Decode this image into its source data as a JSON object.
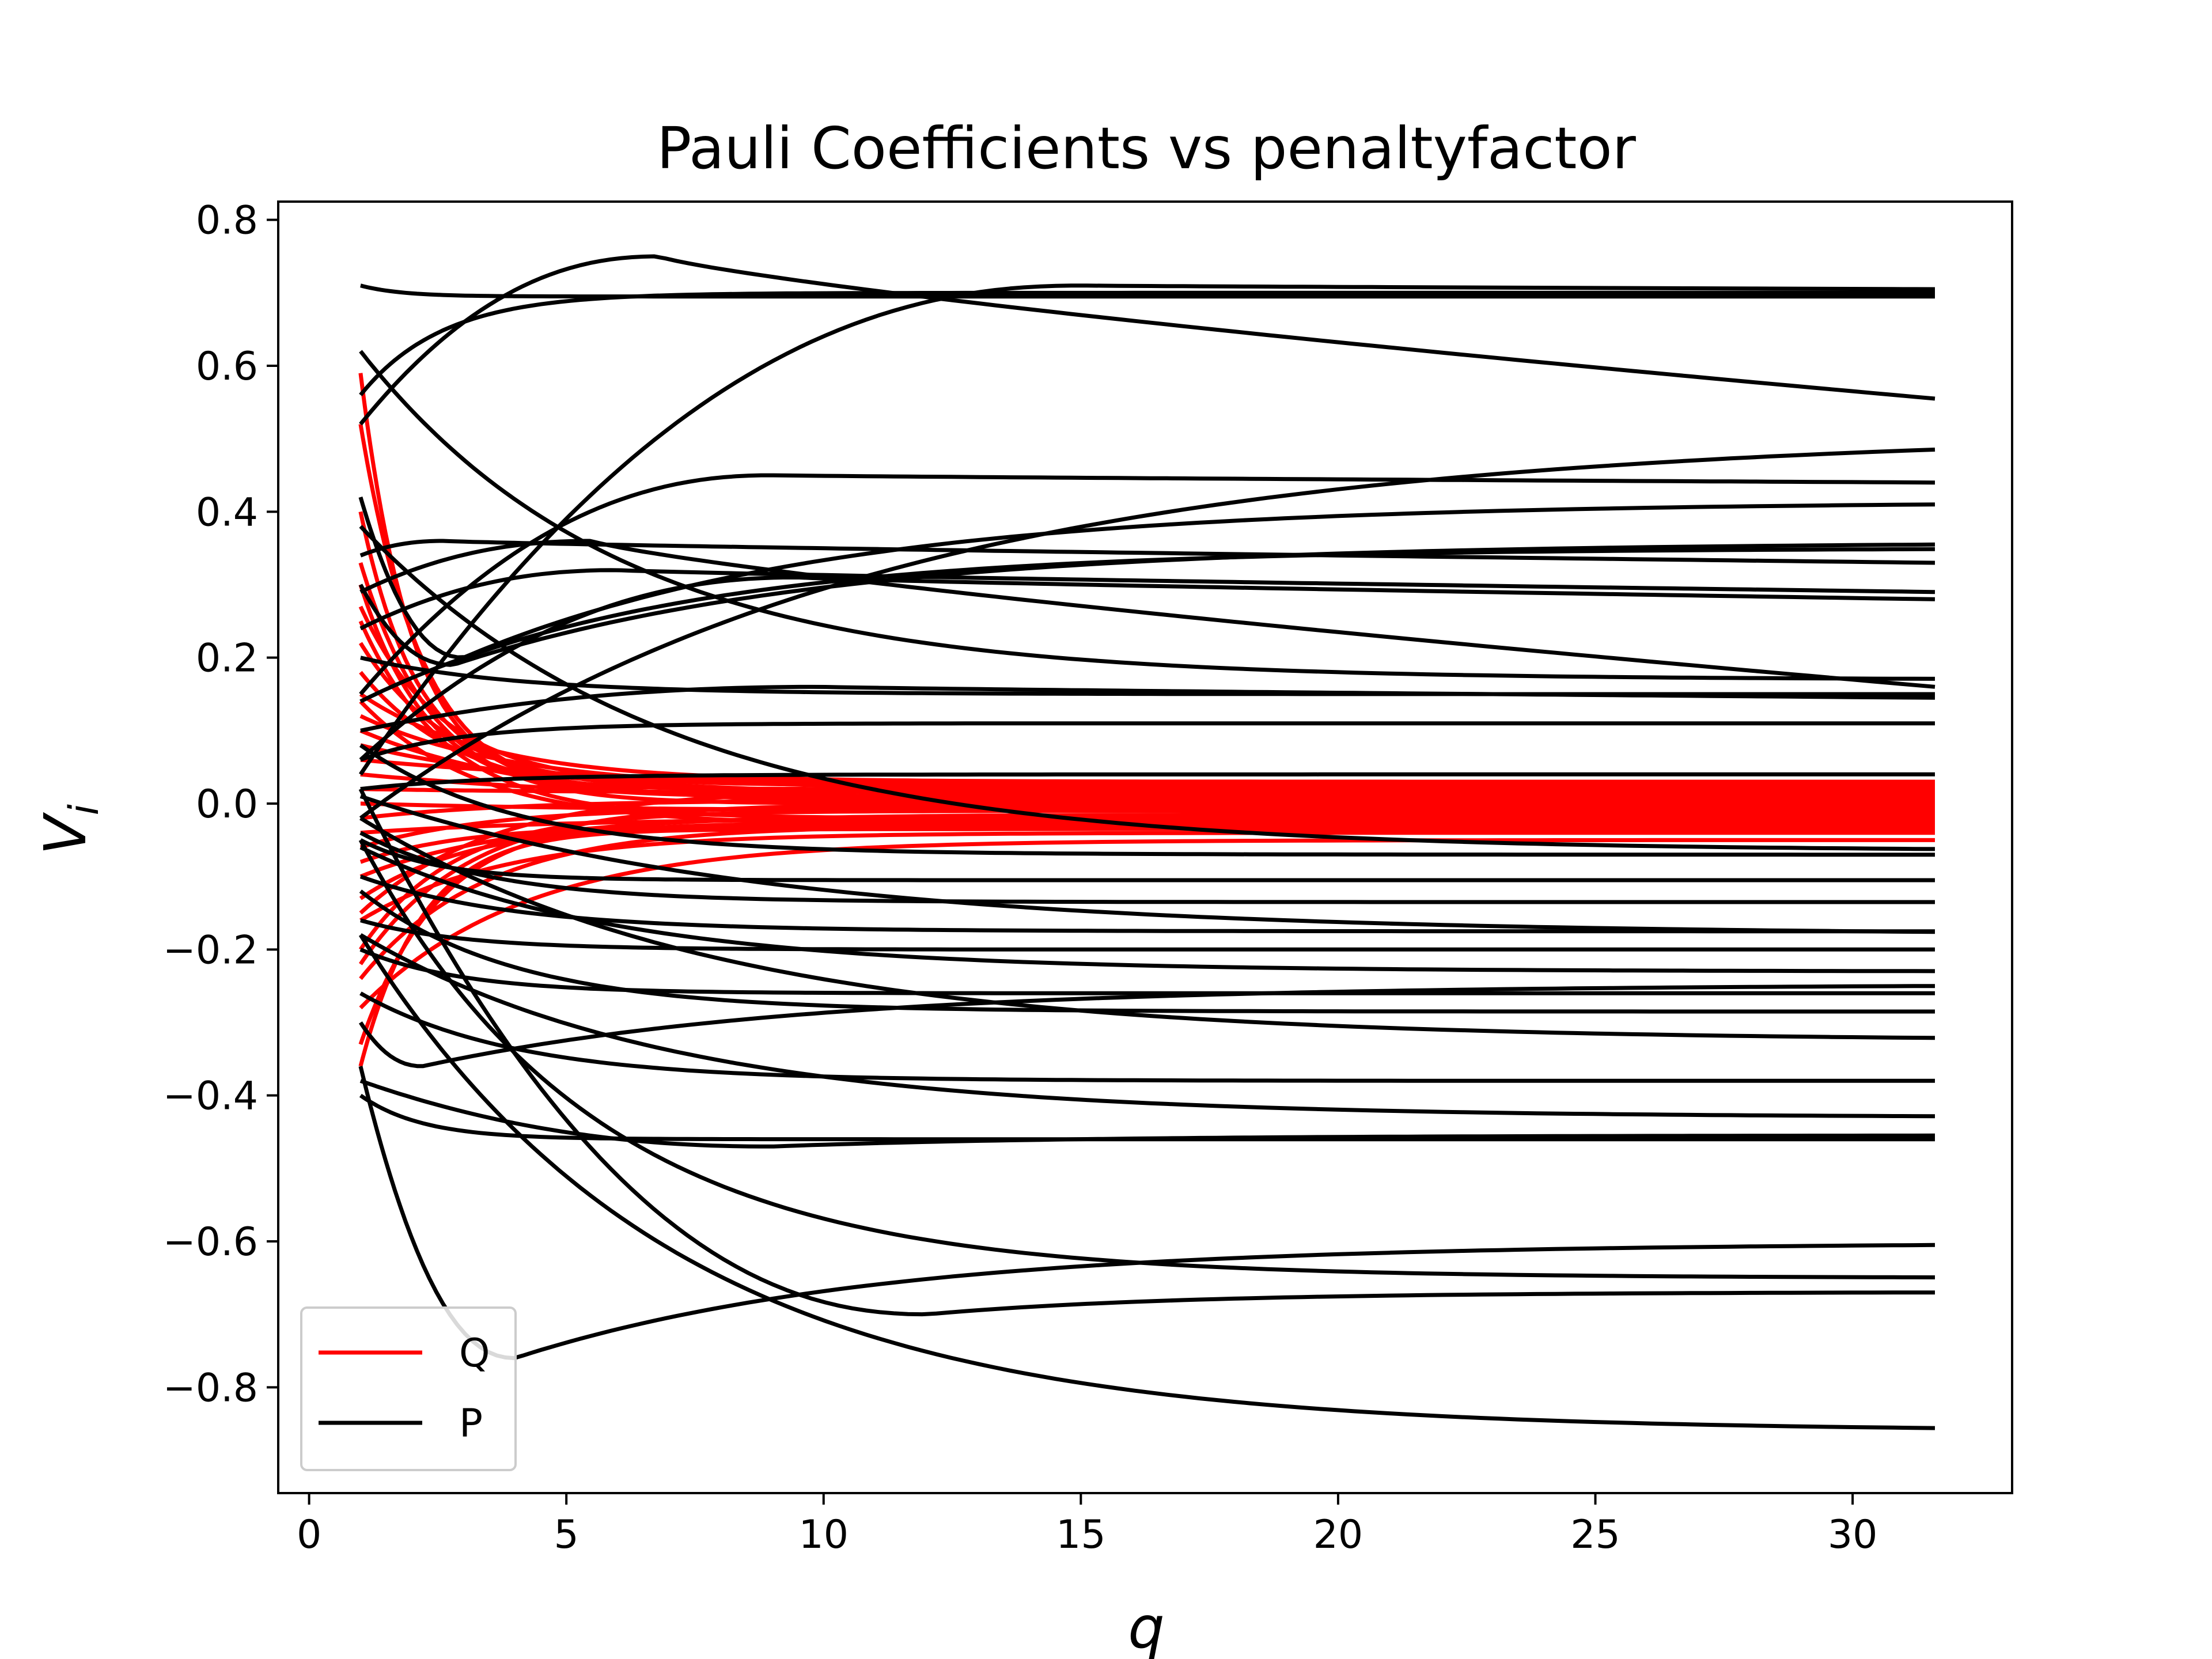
{
  "chart_data": {
    "type": "line",
    "title": "Pauli Coefficients vs penaltyfactor",
    "xlabel": "q",
    "ylabel": "V",
    "ylabel_subscript": "i",
    "xlim": [
      -0.6,
      33.1
    ],
    "ylim": [
      -0.945,
      0.825
    ],
    "xticks": [
      0,
      5,
      10,
      15,
      20,
      25,
      30
    ],
    "yticks": [
      -0.8,
      -0.6,
      -0.4,
      -0.2,
      0.0,
      0.2,
      0.4,
      0.6,
      0.8
    ],
    "ytick_labels": [
      "−0.8",
      "−0.6",
      "−0.4",
      "−0.2",
      "0.0",
      "0.2",
      "0.4",
      "0.6",
      "0.8"
    ],
    "grid": false,
    "legend": {
      "placement": "lower-left",
      "entries": [
        {
          "label": "Q",
          "color": "#ff0000"
        },
        {
          "label": "P",
          "color": "#000000"
        }
      ]
    },
    "x_range": [
      1.0,
      31.6
    ],
    "series_groups": [
      {
        "name": "Q",
        "color": "#ff0000",
        "curves": [
          {
            "start": 0.59,
            "end": 0.02,
            "tau": 1.0
          },
          {
            "start": 0.52,
            "end": 0.01,
            "tau": 1.2
          },
          {
            "start": 0.4,
            "end": 0.03,
            "tau": 1.1
          },
          {
            "start": 0.33,
            "end": 0.0,
            "tau": 1.4
          },
          {
            "start": 0.27,
            "end": 0.025,
            "tau": 1.6
          },
          {
            "start": 0.22,
            "end": 0.015,
            "tau": 1.8
          },
          {
            "start": 0.18,
            "end": 0.005,
            "tau": 2.0
          },
          {
            "start": 0.15,
            "end": 0.03,
            "tau": 2.5
          },
          {
            "start": 0.12,
            "end": 0.02,
            "tau": 3.0
          },
          {
            "start": 0.1,
            "end": -0.005,
            "tau": 3.5
          },
          {
            "start": 0.08,
            "end": 0.01,
            "tau": 4.0
          },
          {
            "start": 0.06,
            "end": 0.025,
            "tau": 5.0
          },
          {
            "start": 0.04,
            "end": 0.0,
            "tau": 6.0
          },
          {
            "start": 0.02,
            "end": 0.015,
            "tau": 4.0
          },
          {
            "start": 0.0,
            "end": -0.01,
            "tau": 5.0
          },
          {
            "start": -0.02,
            "end": 0.005,
            "tau": 3.0
          },
          {
            "start": -0.04,
            "end": -0.02,
            "tau": 4.0
          },
          {
            "start": -0.06,
            "end": -0.005,
            "tau": 2.5
          },
          {
            "start": -0.08,
            "end": -0.03,
            "tau": 2.0
          },
          {
            "start": -0.1,
            "end": -0.015,
            "tau": 3.0
          },
          {
            "start": -0.13,
            "end": -0.025,
            "tau": 2.2
          },
          {
            "start": -0.16,
            "end": -0.04,
            "tau": 2.8
          },
          {
            "start": -0.2,
            "end": -0.01,
            "tau": 1.8
          },
          {
            "start": -0.24,
            "end": -0.03,
            "tau": 2.4
          },
          {
            "start": -0.28,
            "end": -0.05,
            "tau": 3.2
          },
          {
            "start": -0.33,
            "end": -0.02,
            "tau": 1.5
          },
          {
            "start": -0.36,
            "end": -0.035,
            "tau": 1.2
          },
          {
            "start": 0.3,
            "end": 0.01,
            "tau": 1.3
          },
          {
            "start": 0.25,
            "end": -0.02,
            "tau": 1.7
          },
          {
            "start": -0.15,
            "end": 0.02,
            "tau": 2.6
          },
          {
            "start": -0.22,
            "end": 0.0,
            "tau": 2.1
          },
          {
            "start": 0.14,
            "end": -0.03,
            "tau": 2.3
          }
        ]
      },
      {
        "name": "P",
        "color": "#000000",
        "curves": [
          {
            "start": 0.56,
            "end": 0.7,
            "tau": 1.6
          },
          {
            "start": 0.71,
            "end": 0.695,
            "tau": 0.8
          },
          {
            "start": 0.52,
            "end": 0.555,
            "peak": 0.75,
            "peak_x": 6.8
          },
          {
            "start": 0.04,
            "end": 0.705,
            "peak": 0.71,
            "peak_x": 15.0
          },
          {
            "start": -0.02,
            "end": 0.51,
            "tau": 10.0
          },
          {
            "start": 0.15,
            "end": 0.44,
            "peak": 0.45,
            "peak_x": 9.0
          },
          {
            "start": 0.42,
            "end": 0.41,
            "dip": 0.2,
            "dip_x": 3.0
          },
          {
            "start": 0.3,
            "end": 0.355,
            "dip": 0.19,
            "dip_x": 2.8
          },
          {
            "start": 0.14,
            "end": 0.35,
            "tau": 6.0
          },
          {
            "start": 0.34,
            "end": 0.33,
            "peak": 0.36,
            "peak_x": 2.6
          },
          {
            "start": 0.24,
            "end": 0.29,
            "peak": 0.32,
            "peak_x": 6.0
          },
          {
            "start": 0.06,
            "end": 0.28,
            "peak": 0.31,
            "peak_x": 9.5
          },
          {
            "start": 0.62,
            "end": 0.17,
            "tau": 5.0
          },
          {
            "start": 0.29,
            "end": 0.16,
            "peak": 0.36,
            "peak_x": 5.5
          },
          {
            "start": 0.2,
            "end": 0.15,
            "tau": 3.0
          },
          {
            "start": 0.1,
            "end": 0.145,
            "peak": 0.16,
            "peak_x": 10.0
          },
          {
            "start": 0.06,
            "end": 0.11,
            "tau": 2.0
          },
          {
            "start": 0.02,
            "end": 0.04,
            "tau": 2.5
          },
          {
            "start": 0.38,
            "end": -0.065,
            "tau": 6.0
          },
          {
            "start": 0.08,
            "end": -0.07,
            "tau": 3.0
          },
          {
            "start": -0.05,
            "end": -0.105,
            "tau": 1.5
          },
          {
            "start": -0.04,
            "end": -0.135,
            "tau": 2.5
          },
          {
            "start": -0.1,
            "end": -0.175,
            "tau": 3.0
          },
          {
            "start": 0.01,
            "end": -0.18,
            "tau": 8.0
          },
          {
            "start": -0.16,
            "end": -0.2,
            "tau": 2.0
          },
          {
            "start": -0.06,
            "end": -0.23,
            "tau": 5.0
          },
          {
            "start": -0.2,
            "end": -0.26,
            "tau": 2.0
          },
          {
            "start": -0.12,
            "end": -0.285,
            "tau": 3.0
          },
          {
            "start": -0.02,
            "end": -0.325,
            "tau": 7.0
          },
          {
            "start": -0.3,
            "end": -0.25,
            "dip": -0.36,
            "dip_x": 2.2
          },
          {
            "start": -0.26,
            "end": -0.38,
            "tau": 3.0
          },
          {
            "start": -0.18,
            "end": -0.43,
            "tau": 6.0
          },
          {
            "start": -0.38,
            "end": -0.455,
            "dip": -0.47,
            "dip_x": 9.0
          },
          {
            "start": -0.4,
            "end": -0.46,
            "tau": 1.2
          },
          {
            "start": -0.36,
            "end": -0.605,
            "dip": -0.76,
            "dip_x": 4.0
          },
          {
            "start": -0.05,
            "end": -0.65,
            "tau": 4.5
          },
          {
            "start": 0.02,
            "end": -0.67,
            "dip": -0.7,
            "dip_x": 12.0
          },
          {
            "start": -0.18,
            "end": -0.86,
            "tau": 6.0
          }
        ]
      }
    ]
  }
}
